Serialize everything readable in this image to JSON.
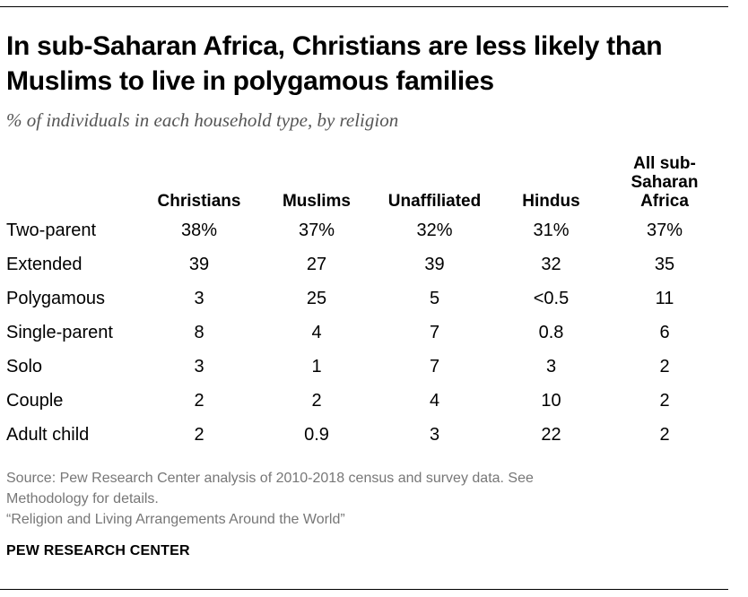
{
  "title": "In sub-Saharan Africa, Christians are less likely than Muslims to live in polygamous families",
  "subtitle": "% of individuals in each household type, by religion",
  "chart_data": {
    "type": "table",
    "title": "In sub-Saharan Africa, Christians are less likely than Muslims to live in polygamous families",
    "subtitle": "% of individuals in each household type, by religion",
    "columns": [
      "Christians",
      "Muslims",
      "Unaffiliated",
      "Hindus",
      "All sub-Saharan Africa"
    ],
    "column_headers": [
      [
        "Christians"
      ],
      [
        "Muslims"
      ],
      [
        "Unaffiliated"
      ],
      [
        "Hindus"
      ],
      [
        "All sub-",
        "Saharan",
        "Africa"
      ]
    ],
    "rows": [
      {
        "label": "Two-parent",
        "cells": [
          "38%",
          "37%",
          "32%",
          "31%",
          "37%"
        ]
      },
      {
        "label": "Extended",
        "cells": [
          "39",
          "27",
          "39",
          "32",
          "35"
        ]
      },
      {
        "label": "Polygamous",
        "cells": [
          "3",
          "25",
          "5",
          "<0.5",
          "11"
        ]
      },
      {
        "label": "Single-parent",
        "cells": [
          "8",
          "4",
          "7",
          "0.8",
          "6"
        ]
      },
      {
        "label": "Solo",
        "cells": [
          "3",
          "1",
          "7",
          "3",
          "2"
        ]
      },
      {
        "label": "Couple",
        "cells": [
          "2",
          "2",
          "4",
          "10",
          "2"
        ]
      },
      {
        "label": "Adult child",
        "cells": [
          "2",
          "0.9",
          "3",
          "22",
          "2"
        ]
      }
    ]
  },
  "source": {
    "line1": "Source: Pew Research Center analysis of 2010-2018 census and survey data. See",
    "line2": "Methodology for details.",
    "line3": "“Religion and Living Arrangements Around the World”"
  },
  "brand": "PEW RESEARCH CENTER"
}
